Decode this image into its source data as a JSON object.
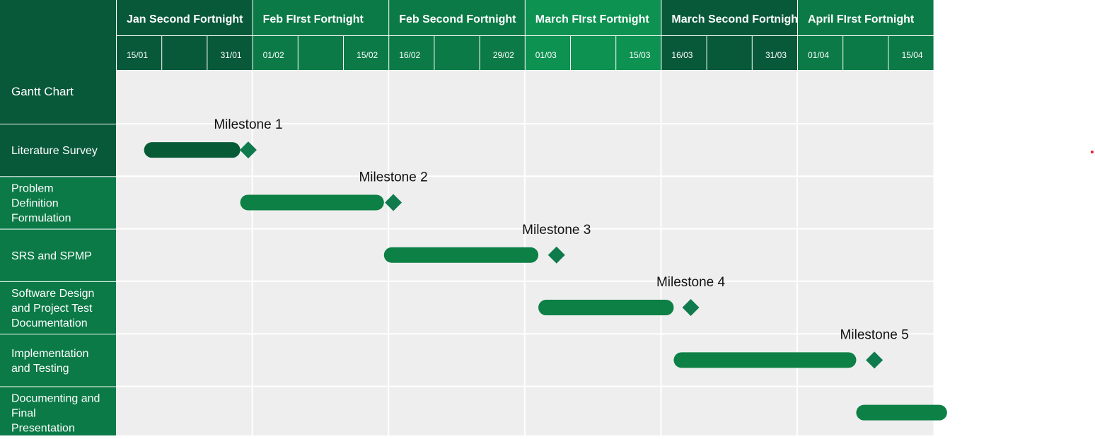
{
  "chart_data": {
    "type": "gantt",
    "title": "Gantt Chart",
    "periods": [
      {
        "label": "Jan Second Fortnight",
        "start": "15/01",
        "end": "31/01"
      },
      {
        "label": "Feb FIrst Fortnight",
        "start": "01/02",
        "end": "15/02"
      },
      {
        "label": "Feb Second Fortnight",
        "start": "16/02",
        "end": "29/02"
      },
      {
        "label": "March FIrst Fortnight",
        "start": "01/03",
        "end": "15/03"
      },
      {
        "label": "March Second Fortnight",
        "start": "16/03",
        "end": "31/03"
      },
      {
        "label": "April FIrst Fortnight",
        "start": "01/04",
        "end": "15/04"
      }
    ],
    "tasks": [
      {
        "name": "Literature Survey",
        "start": "18/01",
        "end": "30/01",
        "milestone": {
          "label": "Milestone 1",
          "date": "31/01"
        }
      },
      {
        "name": "Problem Definition Formulation",
        "start": "30/01",
        "end": "15/02",
        "milestone": {
          "label": "Milestone 2",
          "date": "16/02"
        }
      },
      {
        "name": "SRS and SPMP",
        "start": "15/02",
        "end": "02/03",
        "milestone": {
          "label": "Milestone 3",
          "date": "04/03"
        }
      },
      {
        "name": "Software Design and Project Test Documentation",
        "start": "02/03",
        "end": "17/03",
        "milestone": {
          "label": "Milestone 4",
          "date": "19/03"
        }
      },
      {
        "name": "Implementation and Testing",
        "start": "17/03",
        "end": "07/04",
        "milestone": {
          "label": "Milestone 5",
          "date": "09/04"
        }
      },
      {
        "name": "Documenting and Final Presentation",
        "start": "07/04",
        "end": "17/04"
      }
    ],
    "colors": {
      "dark": "#07593a",
      "mid": "#0b7a47",
      "bright": "#0d9252",
      "bar_dark": "#075a36",
      "bar": "#0c8045",
      "diamond": "#0f7a4c",
      "grid_bg": "#eeeeee",
      "grid_line": "#ffffff"
    }
  }
}
